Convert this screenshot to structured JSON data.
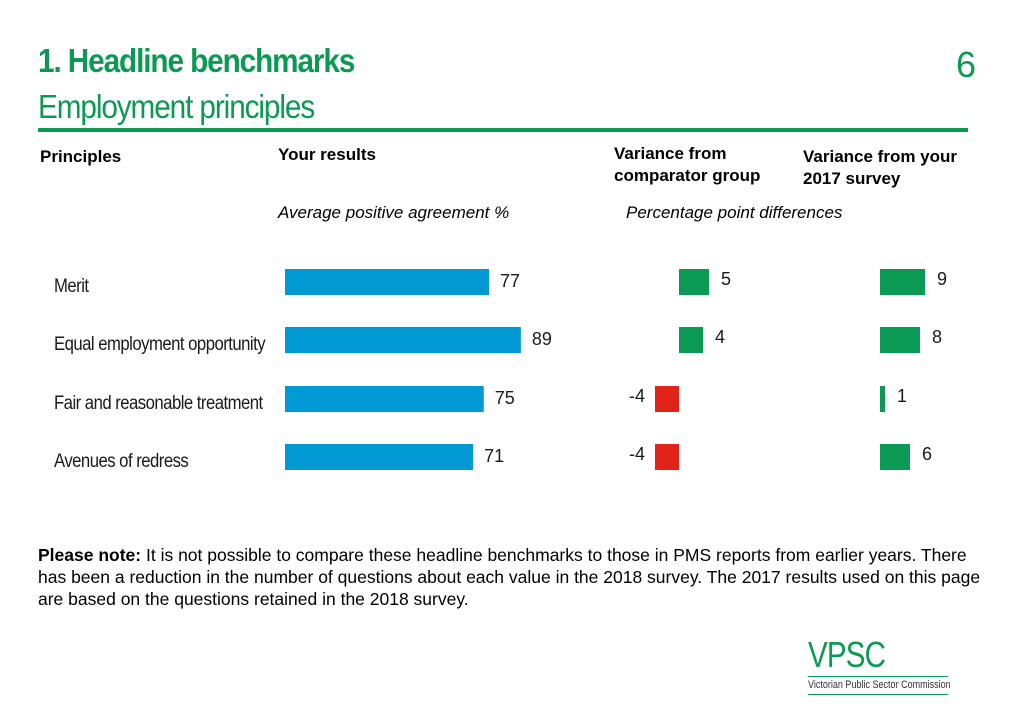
{
  "header": {
    "title": "1. Headline benchmarks",
    "subtitle": "Employment principles",
    "page_number": "6"
  },
  "columns": {
    "principles": "Principles",
    "results": "Your results",
    "variance_comparator": "Variance from comparator group",
    "variance_2017": "Variance from your 2017 survey",
    "results_sub": "Average positive agreement %",
    "variance_sub": "Percentage point differences"
  },
  "note": {
    "prefix": "Please note:",
    "text": "It is not possible to compare these headline benchmarks to those in PMS reports from earlier years. There has been a reduction in the number of questions about each value in the 2018 survey. The 2017 results used on this page are based on the questions retained in the 2018 survey."
  },
  "logo": {
    "word": "VPSC",
    "text": "Victorian Public Sector Commission"
  },
  "colors": {
    "results_bar": "#0099d4",
    "positive": "#0b9a53",
    "negative": "#e2231a",
    "accent": "#0b9a53"
  },
  "chart_data": {
    "type": "bar",
    "categories": [
      "Merit",
      "Equal employment opportunity",
      "Fair and reasonable treatment",
      "Avenues of redress"
    ],
    "series": [
      {
        "name": "Your results",
        "values": [
          77,
          89,
          75,
          71
        ]
      },
      {
        "name": "Variance from comparator group",
        "values": [
          5,
          4,
          -4,
          -4
        ]
      },
      {
        "name": "Variance from your 2017 survey",
        "values": [
          9,
          8,
          1,
          6
        ]
      }
    ]
  }
}
